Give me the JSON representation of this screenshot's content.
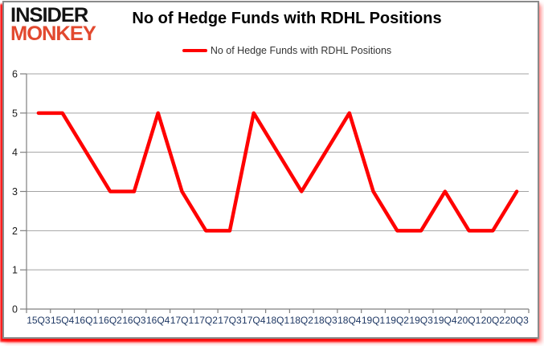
{
  "logo": {
    "line1": "INSIDER",
    "line2": "MONKEY"
  },
  "header": {
    "title": "No of Hedge Funds with RDHL Positions"
  },
  "legend": {
    "label": "No of Hedge Funds with RDHL Positions",
    "swatch_color": "#FF0000"
  },
  "chart_data": {
    "type": "line",
    "title": "No of Hedge Funds with RDHL Positions",
    "categories": [
      "15Q3",
      "15Q4",
      "16Q1",
      "16Q2",
      "16Q3",
      "16Q4",
      "17Q1",
      "17Q2",
      "17Q3",
      "17Q4",
      "18Q1",
      "18Q2",
      "18Q3",
      "18Q4",
      "19Q1",
      "19Q2",
      "19Q3",
      "19Q4",
      "20Q1",
      "20Q2",
      "20Q3"
    ],
    "series": [
      {
        "name": "No of Hedge Funds with RDHL Positions",
        "color": "#FF0000",
        "values": [
          5,
          5,
          4,
          3,
          3,
          5,
          3,
          2,
          2,
          5,
          4,
          3,
          4,
          5,
          3,
          2,
          2,
          3,
          2,
          2,
          3
        ]
      }
    ],
    "xlabel": "",
    "ylabel": "",
    "ylim": [
      0,
      6
    ],
    "yticks": [
      0,
      1,
      2,
      3,
      4,
      5,
      6
    ],
    "grid": true,
    "legend_position": "top-center",
    "colors": {
      "gridline": "#a3a3a3",
      "axis": "#7f7f7f",
      "x_tick_label": "#1f3864",
      "y_tick_label": "#1a1a1a"
    }
  }
}
